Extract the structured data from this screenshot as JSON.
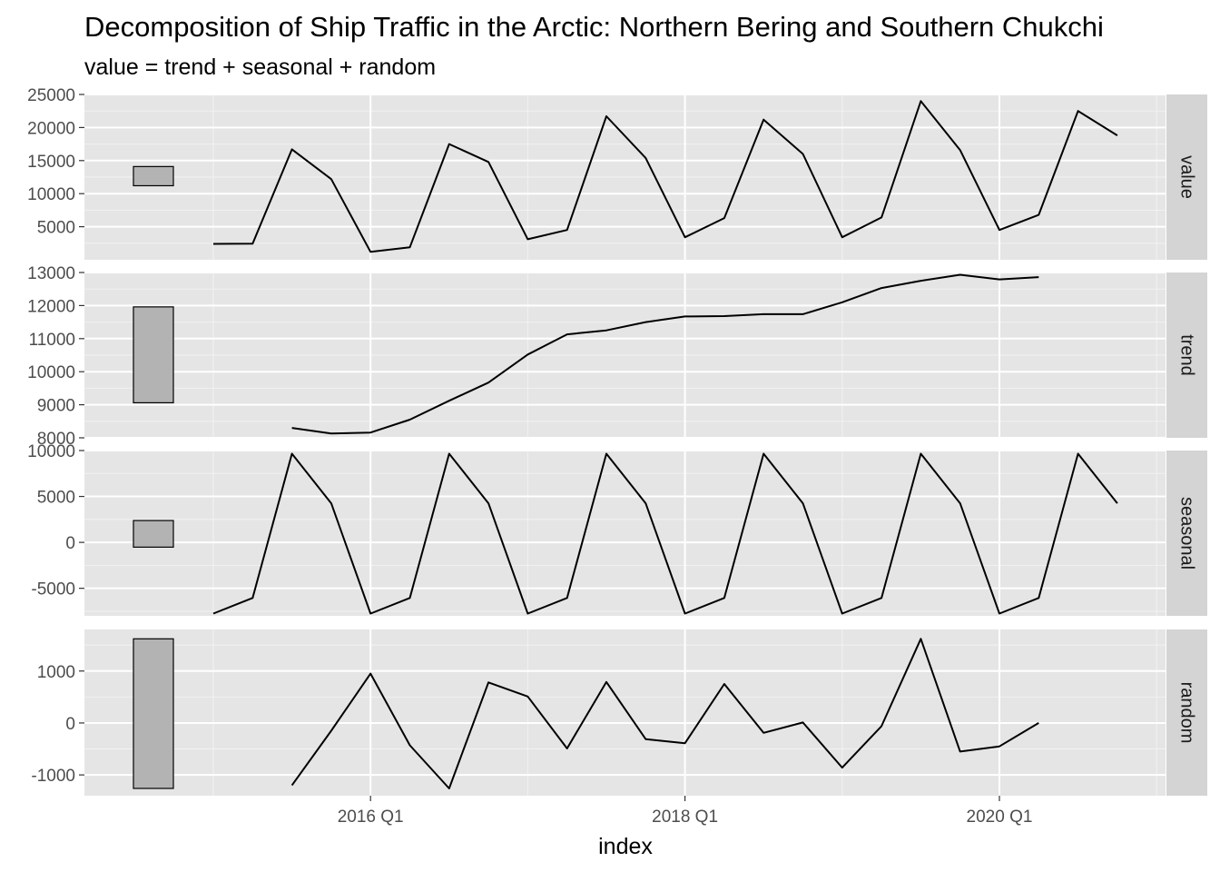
{
  "title": "Decomposition of Ship Traffic in the Arctic: Northern Bering and Southern Chukchi",
  "subtitle": "value = trend + seasonal + random",
  "chart_data": {
    "type": "line",
    "title": "Decomposition of Ship Traffic in the Arctic: Northern Bering and Southern Chukchi",
    "subtitle": "value = trend + seasonal + random",
    "xlabel": "index",
    "ylabel": "",
    "x_ticks": [
      "2016 Q1",
      "2018 Q1",
      "2020 Q1"
    ],
    "x": [
      "2015 Q1",
      "2015 Q2",
      "2015 Q3",
      "2015 Q4",
      "2016 Q1",
      "2016 Q2",
      "2016 Q3",
      "2016 Q4",
      "2017 Q1",
      "2017 Q2",
      "2017 Q3",
      "2017 Q4",
      "2018 Q1",
      "2018 Q2",
      "2018 Q3",
      "2018 Q4",
      "2019 Q1",
      "2019 Q2",
      "2019 Q3",
      "2019 Q4",
      "2020 Q1",
      "2020 Q2",
      "2020 Q3",
      "2020 Q4"
    ],
    "grid": true,
    "legend": "none",
    "line_color": "#000000",
    "panel_background": "#e5e5e5",
    "strip_background": "#d4d4d4",
    "range_bar_fill": "#b3b3b3",
    "panels": [
      {
        "name": "value",
        "ylim": [
          0,
          25000
        ],
        "y_ticks": [
          5000,
          10000,
          15000,
          20000,
          25000
        ],
        "range_bar": [
          11200,
          14100
        ],
        "values": [
          2400,
          2450,
          16700,
          12200,
          1200,
          1900,
          17500,
          14800,
          3100,
          4500,
          21700,
          15400,
          3400,
          6300,
          21200,
          16000,
          3400,
          6400,
          24000,
          16600,
          4500,
          6800,
          22500,
          18800
        ]
      },
      {
        "name": "trend",
        "ylim": [
          8000,
          13000
        ],
        "y_ticks": [
          8000,
          9000,
          10000,
          11000,
          12000,
          13000
        ],
        "range_bar": [
          9060,
          11960
        ],
        "values": [
          null,
          null,
          8300,
          8130,
          8160,
          8550,
          9120,
          9670,
          10520,
          11130,
          11250,
          11500,
          11670,
          11680,
          11740,
          11740,
          12100,
          12530,
          12750,
          12930,
          12790,
          12860,
          null,
          null
        ]
      },
      {
        "name": "seasonal",
        "ylim": [
          -8000,
          10000
        ],
        "y_ticks": [
          -5000,
          0,
          5000,
          10000
        ],
        "range_bar": [
          -520,
          2380
        ],
        "values": [
          -7750,
          -6050,
          9650,
          4250,
          -7750,
          -6050,
          9650,
          4250,
          -7750,
          -6050,
          9650,
          4250,
          -7750,
          -6050,
          9650,
          4250,
          -7750,
          -6050,
          9650,
          4250,
          -7750,
          -6050,
          9650,
          4250
        ]
      },
      {
        "name": "random",
        "ylim": [
          -1400,
          1800
        ],
        "y_ticks": [
          -1000,
          0,
          1000
        ],
        "range_bar": [
          -1260,
          1620
        ],
        "values": [
          null,
          null,
          -1200,
          -150,
          950,
          -430,
          -1260,
          780,
          510,
          -490,
          790,
          -310,
          -390,
          750,
          -190,
          10,
          -860,
          -60,
          1620,
          -550,
          -450,
          0,
          null,
          null
        ]
      }
    ]
  }
}
